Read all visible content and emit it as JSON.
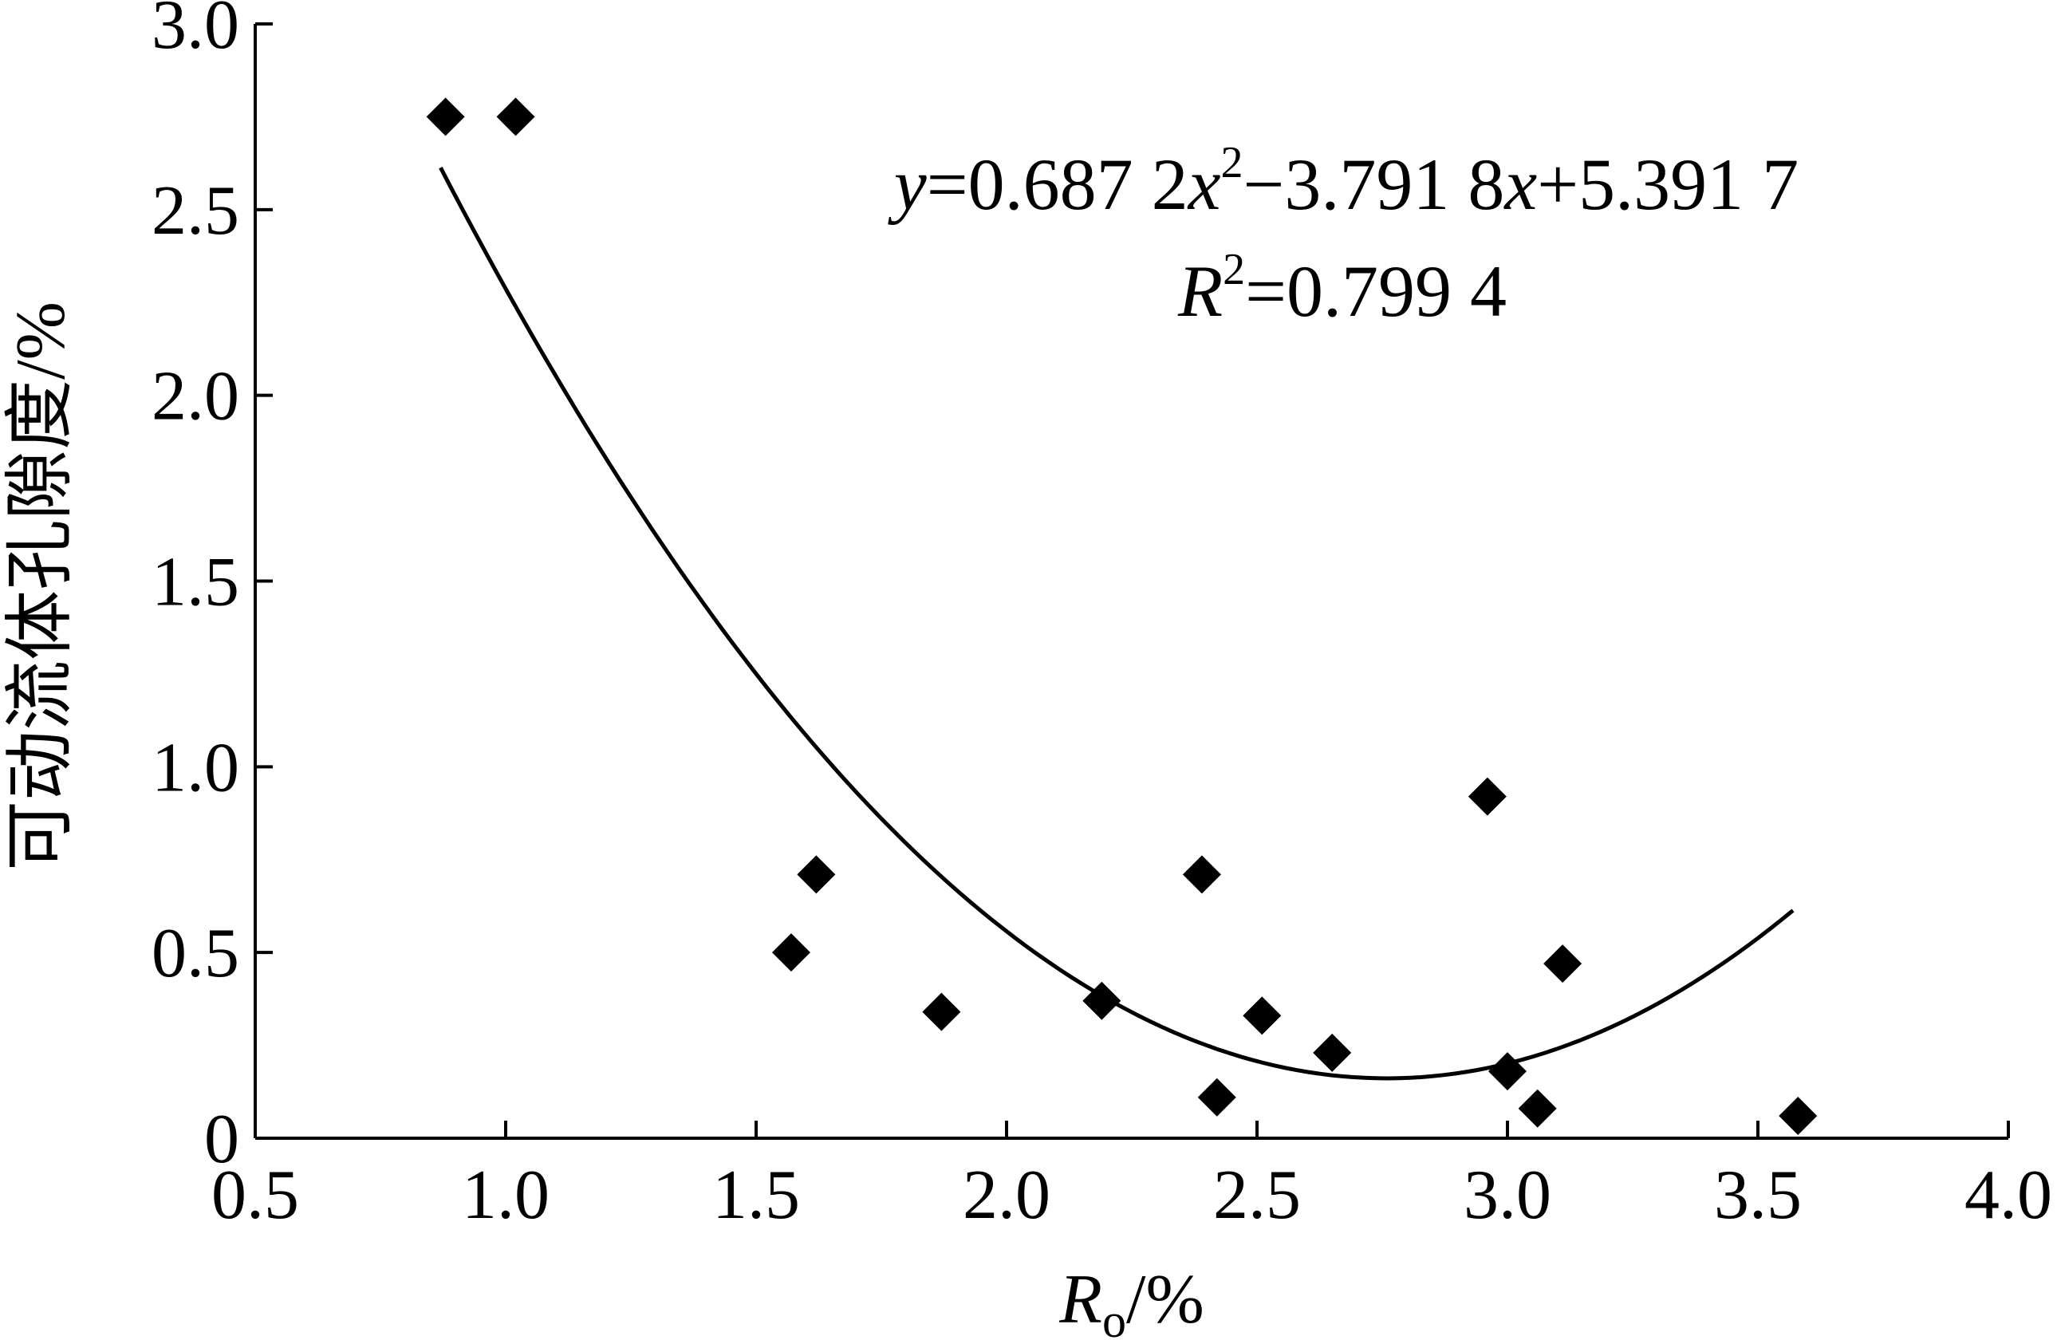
{
  "chart_data": {
    "type": "scatter",
    "xlabel_main": "R",
    "xlabel_sub": "o",
    "xlabel_unit": "/%",
    "ylabel": "可动流体孔隙度/%",
    "xlim": [
      0.5,
      4.0
    ],
    "ylim": [
      0,
      3.0
    ],
    "x_ticks": [
      "0.5",
      "1.0",
      "1.5",
      "2.0",
      "2.5",
      "3.0",
      "3.5",
      "4.0"
    ],
    "y_ticks": [
      "0",
      "0.5",
      "1.0",
      "1.5",
      "2.0",
      "2.5",
      "3.0"
    ],
    "grid": false,
    "marker": "diamond",
    "points": [
      {
        "x": 0.88,
        "y": 2.75
      },
      {
        "x": 1.02,
        "y": 2.75
      },
      {
        "x": 1.57,
        "y": 0.5
      },
      {
        "x": 1.62,
        "y": 0.71
      },
      {
        "x": 1.87,
        "y": 0.34
      },
      {
        "x": 2.19,
        "y": 0.37
      },
      {
        "x": 2.39,
        "y": 0.71
      },
      {
        "x": 2.42,
        "y": 0.11
      },
      {
        "x": 2.51,
        "y": 0.33
      },
      {
        "x": 2.65,
        "y": 0.23
      },
      {
        "x": 2.96,
        "y": 0.92
      },
      {
        "x": 3.0,
        "y": 0.18
      },
      {
        "x": 3.06,
        "y": 0.08
      },
      {
        "x": 3.11,
        "y": 0.47
      },
      {
        "x": 3.58,
        "y": 0.06
      }
    ],
    "trendline": {
      "type": "polynomial",
      "coefficients": [
        0.6872,
        -3.7918,
        5.3917
      ],
      "x_range": [
        0.87,
        3.57
      ]
    },
    "equation": {
      "y_var": "y",
      "eq_part1": "=0.687 2",
      "x_var1": "x",
      "sup2": "2",
      "eq_part2": "−3.791 8",
      "x_var2": "x",
      "eq_part3": "+5.391 7",
      "r_var": "R",
      "r_sup": "2",
      "r_value": "=0.799 4"
    }
  }
}
